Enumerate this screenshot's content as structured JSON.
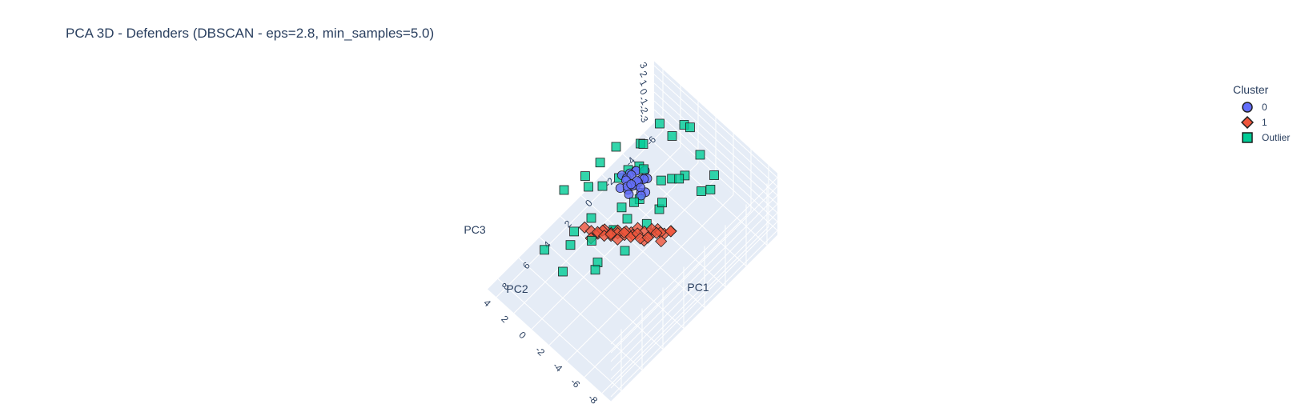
{
  "title": "PCA 3D - Defenders (DBSCAN - eps=2.8, min_samples=5.0)",
  "legend": {
    "title": "Cluster",
    "items": [
      {
        "label": "0",
        "symbol": "circle",
        "color": "#636efa"
      },
      {
        "label": "1",
        "symbol": "diamond",
        "color": "#ef553b"
      },
      {
        "label": "Outlier",
        "symbol": "square",
        "color": "#00cc96"
      }
    ]
  },
  "chart_data": {
    "type": "scatter3d",
    "title": "PCA 3D - Defenders (DBSCAN - eps=2.8, min_samples=5.0)",
    "axes": {
      "x": {
        "label": "PC1",
        "range": [
          -7,
          9
        ],
        "ticks": [
          -6,
          -4,
          -2,
          0,
          2,
          4,
          6,
          8
        ]
      },
      "y": {
        "label": "PC2",
        "range": [
          -9,
          5
        ],
        "ticks": [
          -8,
          -6,
          -4,
          -2,
          0,
          2,
          4
        ]
      },
      "z": {
        "label": "PC3",
        "range": [
          -3.5,
          3.5
        ],
        "ticks": [
          -3,
          -2,
          -1,
          0,
          1,
          2,
          3
        ]
      }
    },
    "grid": true,
    "legend_position": "top-right",
    "series": [
      {
        "name": "0",
        "color": "#636efa",
        "symbol": "circle",
        "points": [
          [
            -1.5,
            0.3,
            0.5
          ],
          [
            -1.2,
            0.6,
            0.2
          ],
          [
            -1.8,
            0.0,
            0.8
          ],
          [
            -1.0,
            0.9,
            -0.3
          ],
          [
            -2.0,
            0.5,
            0.1
          ],
          [
            -1.6,
            1.2,
            0.4
          ],
          [
            -1.3,
            -0.2,
            0.6
          ],
          [
            -0.9,
            0.4,
            0.9
          ],
          [
            -1.7,
            0.8,
            -0.5
          ],
          [
            -2.2,
            0.1,
            0.3
          ],
          [
            -1.4,
            1.5,
            0.0
          ],
          [
            -1.1,
            -0.5,
            0.2
          ],
          [
            -0.8,
            0.7,
            0.5
          ],
          [
            -1.9,
            1.0,
            0.7
          ],
          [
            -1.5,
            0.0,
            -0.4
          ],
          [
            -0.6,
            0.3,
            0.2
          ],
          [
            -2.4,
            0.6,
            0.5
          ],
          [
            -1.2,
            1.8,
            0.3
          ],
          [
            -1.6,
            -0.4,
            -0.1
          ],
          [
            -1.0,
            1.1,
            0.6
          ],
          [
            -0.7,
            1.4,
            -0.2
          ],
          [
            -2.1,
            1.3,
            0.2
          ],
          [
            -1.3,
            0.2,
            1.0
          ],
          [
            -1.8,
            1.6,
            0.0
          ]
        ]
      },
      {
        "name": "1",
        "color": "#ef553b",
        "symbol": "diamond",
        "points": [
          [
            -0.5,
            -4.6,
            0.6
          ],
          [
            -0.2,
            -4.2,
            0.3
          ],
          [
            0.1,
            -3.8,
            0.8
          ],
          [
            0.4,
            -3.4,
            0.2
          ],
          [
            0.7,
            -3.0,
            0.5
          ],
          [
            1.0,
            -2.6,
            0.9
          ],
          [
            1.3,
            -2.2,
            0.4
          ],
          [
            1.6,
            -1.8,
            0.1
          ],
          [
            1.9,
            -1.4,
            0.6
          ],
          [
            2.2,
            -1.0,
            0.3
          ],
          [
            2.5,
            -0.6,
            0.7
          ],
          [
            2.8,
            -0.2,
            0.2
          ],
          [
            3.1,
            0.2,
            0.5
          ],
          [
            3.4,
            0.6,
            0.9
          ],
          [
            -0.3,
            -4.8,
            1.0
          ],
          [
            0.2,
            -4.3,
            0.0
          ],
          [
            0.5,
            -3.6,
            1.1
          ],
          [
            0.9,
            -3.2,
            -0.1
          ],
          [
            1.2,
            -2.8,
            0.7
          ],
          [
            1.5,
            -2.4,
            0.3
          ],
          [
            1.8,
            -2.0,
            0.8
          ],
          [
            2.1,
            -1.6,
            0.0
          ],
          [
            2.4,
            -1.2,
            0.6
          ],
          [
            2.7,
            -0.8,
            0.4
          ],
          [
            3.0,
            -0.4,
            0.8
          ],
          [
            3.3,
            0.0,
            0.1
          ],
          [
            0.0,
            -4.0,
            0.5
          ],
          [
            0.8,
            -3.5,
            0.4
          ],
          [
            1.4,
            -2.5,
            0.5
          ],
          [
            2.0,
            -1.5,
            0.5
          ],
          [
            2.6,
            -0.5,
            0.6
          ],
          [
            1.1,
            -3.0,
            0.2
          ],
          [
            1.7,
            -2.1,
            0.9
          ],
          [
            2.3,
            -1.1,
            0.2
          ],
          [
            0.3,
            -3.9,
            0.7
          ]
        ]
      },
      {
        "name": "Outlier",
        "color": "#00cc96",
        "symbol": "square",
        "points": [
          [
            -6.5,
            1.0,
            0.5
          ],
          [
            -5.5,
            -2.0,
            1.0
          ],
          [
            -4.0,
            3.0,
            -0.5
          ],
          [
            -3.5,
            -4.5,
            1.5
          ],
          [
            -2.5,
            4.0,
            0.0
          ],
          [
            -6.0,
            -3.0,
            -1.0
          ],
          [
            -3.0,
            1.5,
            2.0
          ],
          [
            -2.0,
            -1.5,
            -1.5
          ],
          [
            -4.5,
            0.0,
            2.5
          ],
          [
            -1.5,
            2.5,
            -1.0
          ],
          [
            -5.0,
            2.0,
            1.5
          ],
          [
            -2.8,
            -2.8,
            2.2
          ],
          [
            -0.5,
            1.0,
            -1.8
          ],
          [
            -3.8,
            -0.8,
            -0.8
          ],
          [
            1.0,
            3.0,
            0.5
          ],
          [
            2.0,
            1.5,
            -0.5
          ],
          [
            3.5,
            -1.0,
            -1.5
          ],
          [
            5.0,
            -2.5,
            0.8
          ],
          [
            6.0,
            0.0,
            -0.5
          ],
          [
            -1.0,
            -3.0,
            1.8
          ],
          [
            0.0,
            -1.0,
            1.2
          ],
          [
            2.5,
            4.0,
            1.0
          ],
          [
            -0.8,
            3.8,
            0.4
          ],
          [
            4.0,
            1.5,
            -1.2
          ],
          [
            -4.2,
            -1.8,
            0.0
          ],
          [
            -2.2,
            0.5,
            1.0
          ],
          [
            -1.2,
            -0.2,
            -0.6
          ],
          [
            0.5,
            2.0,
            0.9
          ],
          [
            1.5,
            -2.0,
            2.0
          ],
          [
            3.0,
            -3.5,
            1.5
          ],
          [
            -5.8,
            -0.5,
            2.4
          ],
          [
            -3.2,
            2.2,
            -1.4
          ],
          [
            0.8,
            0.2,
            -2.2
          ],
          [
            2.8,
            2.5,
            -2.0
          ],
          [
            -1.8,
            1.8,
            0.2
          ],
          [
            1.8,
            -0.8,
            0.0
          ],
          [
            -4.8,
            -4.0,
            -0.3
          ],
          [
            -0.2,
            -2.2,
            -0.4
          ],
          [
            4.5,
            -1.5,
            2.6
          ],
          [
            6.5,
            1.5,
            1.2
          ],
          [
            -2.6,
            -1.0,
            0.6
          ],
          [
            0.3,
            4.2,
            -0.2
          ]
        ]
      }
    ]
  }
}
